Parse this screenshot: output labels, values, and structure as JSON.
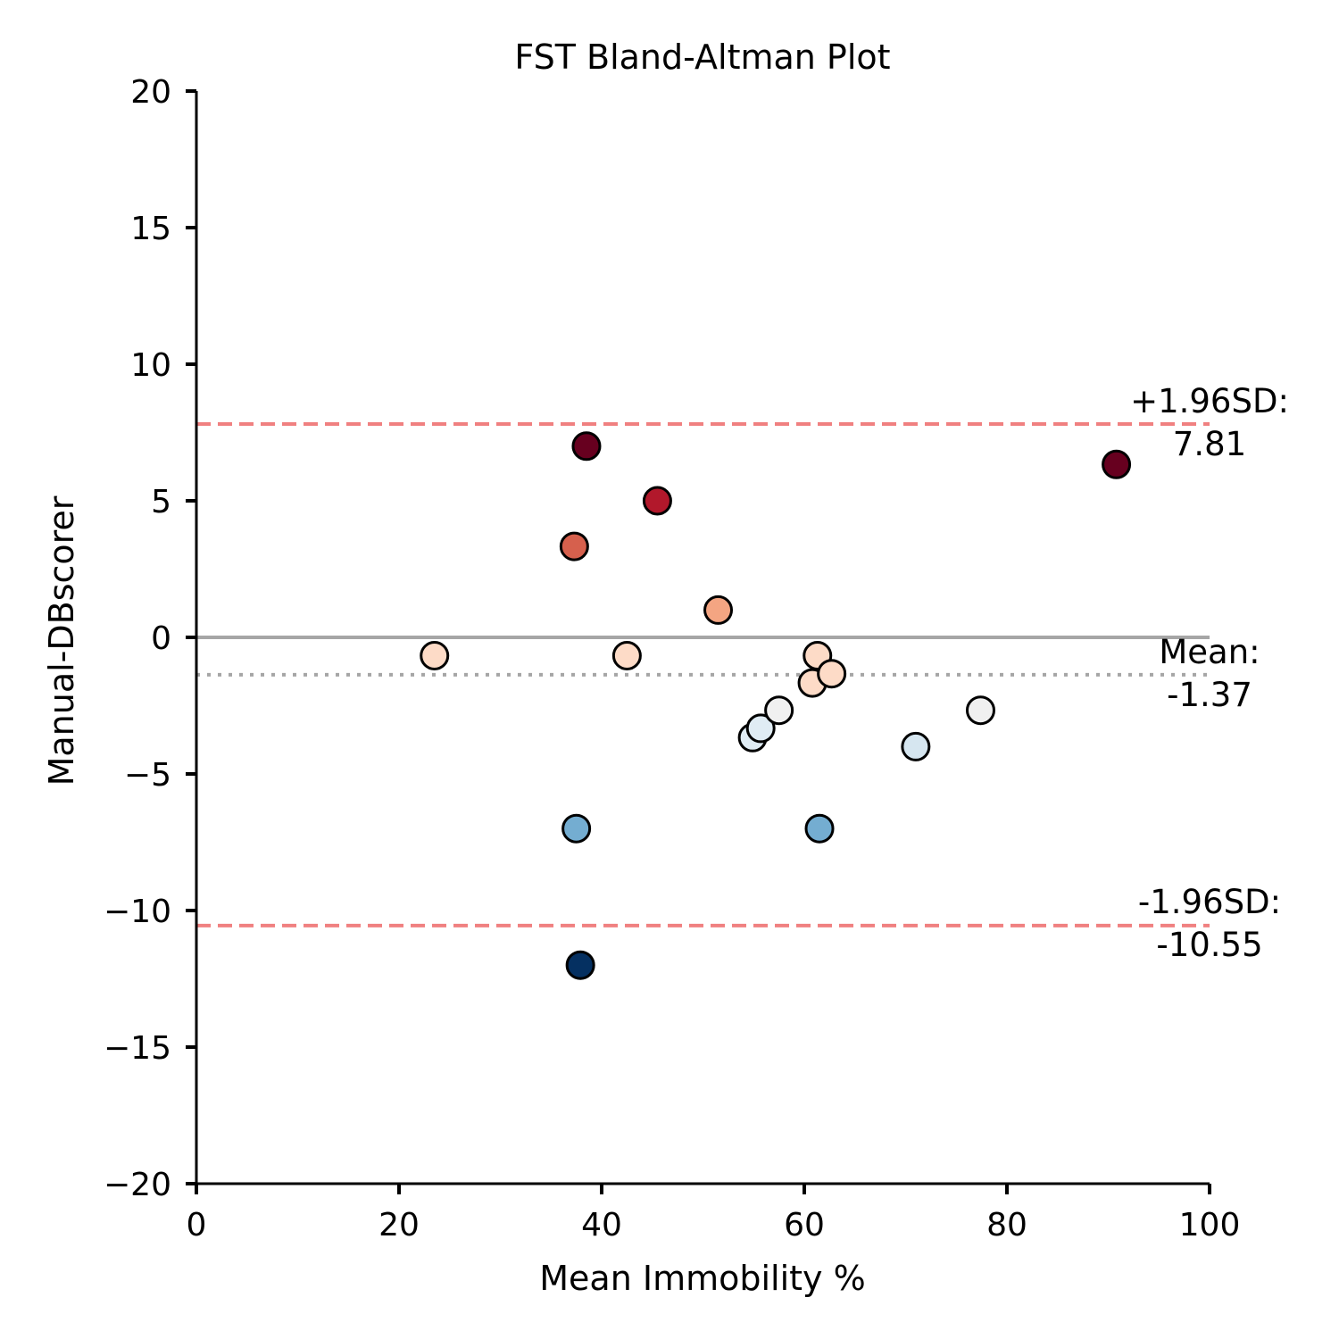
{
  "chart_data": {
    "type": "scatter",
    "title": "FST Bland-Altman Plot",
    "xlabel": "Mean Immobility %",
    "ylabel": "Manual-DBscorer",
    "xlim": [
      0,
      100
    ],
    "ylim": [
      -20,
      20
    ],
    "xticks": [
      "0",
      "20",
      "40",
      "60",
      "80",
      "100"
    ],
    "yticks": [
      "20",
      "15",
      "10",
      "5",
      "0",
      "−5",
      "−10",
      "−15",
      "−20"
    ],
    "grid": false,
    "zero_line": {
      "y": 0,
      "color": "#a6a6a6"
    },
    "mean_line": {
      "y": -1.37,
      "color": "#a6a6a6",
      "label_line1": "Mean:",
      "label_line2": "-1.37"
    },
    "upper_loa": {
      "y": 7.81,
      "color": "#f08080",
      "label_line1": "+1.96SD:",
      "label_line2": "7.81"
    },
    "lower_loa": {
      "y": -10.55,
      "color": "#f08080",
      "label_line1": "-1.96SD:",
      "label_line2": "-10.55"
    },
    "points": [
      {
        "x": 23.5,
        "y": -0.67,
        "color": "#fddbc7"
      },
      {
        "x": 37.3,
        "y": 3.33,
        "color": "#d6604d"
      },
      {
        "x": 37.5,
        "y": -7.0,
        "color": "#74add1"
      },
      {
        "x": 37.9,
        "y": -12.0,
        "color": "#053061"
      },
      {
        "x": 38.5,
        "y": 7.0,
        "color": "#67001f"
      },
      {
        "x": 42.5,
        "y": -0.67,
        "color": "#fddbc7"
      },
      {
        "x": 45.5,
        "y": 5.0,
        "color": "#b2182b"
      },
      {
        "x": 51.5,
        "y": 1.0,
        "color": "#f4a582"
      },
      {
        "x": 54.9,
        "y": -3.67,
        "color": "#e0ecf4"
      },
      {
        "x": 55.7,
        "y": -3.33,
        "color": "#e0ecf4"
      },
      {
        "x": 57.5,
        "y": -2.67,
        "color": "#f0f0f0"
      },
      {
        "x": 60.8,
        "y": -1.67,
        "color": "#fddbc7"
      },
      {
        "x": 61.3,
        "y": -0.67,
        "color": "#fddbc7"
      },
      {
        "x": 62.7,
        "y": -1.33,
        "color": "#fddbc7"
      },
      {
        "x": 61.5,
        "y": -7.0,
        "color": "#74add1"
      },
      {
        "x": 71.0,
        "y": -4.0,
        "color": "#d6e6f0"
      },
      {
        "x": 77.4,
        "y": -2.67,
        "color": "#f0f0f0"
      },
      {
        "x": 90.8,
        "y": 6.33,
        "color": "#67001f"
      }
    ]
  }
}
